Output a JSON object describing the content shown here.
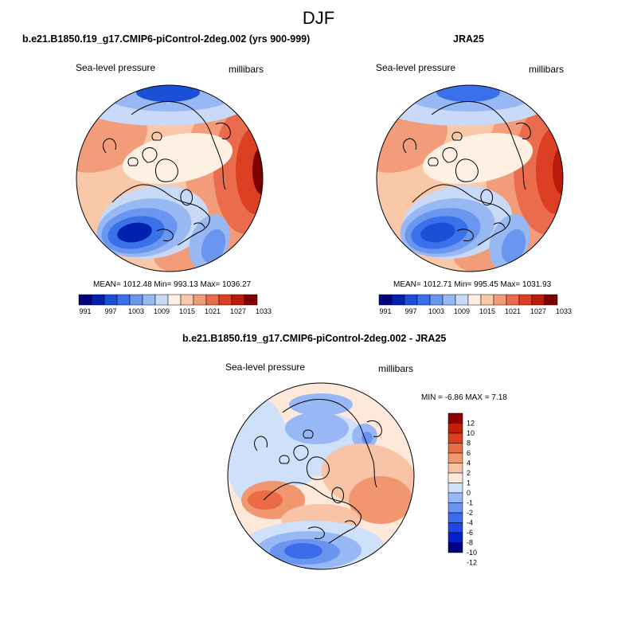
{
  "title": "DJF",
  "palette": {
    "abs_colors": [
      "#00007a",
      "#0020b0",
      "#1a4fd8",
      "#3a70ea",
      "#6996ee",
      "#98b8f4",
      "#c9daf8",
      "#fff0e4",
      "#f9c8a8",
      "#f39c7a",
      "#ea6c4c",
      "#dc3f22",
      "#bb1a08",
      "#7d0000"
    ],
    "diff_colors": [
      "#000080",
      "#0020c8",
      "#1e46e6",
      "#3c6ceb",
      "#6a94f0",
      "#98b8f5",
      "#cfe0fa",
      "#fde8da",
      "#f8c3a6",
      "#f1966e",
      "#ea6a44",
      "#dc3e1e",
      "#c0200a",
      "#8c0000"
    ],
    "coast_color": "#000000"
  },
  "panels": [
    {
      "id": "model",
      "title": "b.e21.B1850.f19_g17.CMIP6-piControl-2deg.002 (yrs 900-999)",
      "left_label": "Sea-level pressure",
      "right_label": "millibars",
      "stats": "MEAN= 1012.48  Min= 993.13  Max= 1036.27"
    },
    {
      "id": "obs",
      "title": "JRA25",
      "left_label": "Sea-level pressure",
      "right_label": "millibars",
      "stats": "MEAN= 1012.71  Min= 995.45  Max= 1031.93"
    }
  ],
  "abs_colorbar_labels": [
    "991",
    "997",
    "1003",
    "1009",
    "1015",
    "1021",
    "1027",
    "1033"
  ],
  "diff_panel": {
    "title": "b.e21.B1850.f19_g17.CMIP6-piControl-2deg.002 - JRA25",
    "left_label": "Sea-level pressure",
    "right_label": "millibars",
    "stats": "MIN =  -6.86 MAX =   7.18",
    "colorbar_labels": [
      "12",
      "10",
      "8",
      "6",
      "4",
      "2",
      "1",
      "0",
      "-1",
      "-2",
      "-4",
      "-6",
      "-8",
      "-10",
      "-12"
    ]
  },
  "chart_data": {
    "type": "heatmap",
    "projection": "north-polar-stereographic",
    "variable": "Sea-level pressure",
    "units": "millibars",
    "season": "DJF",
    "abs_levels": [
      991,
      994,
      997,
      1000,
      1003,
      1006,
      1009,
      1012,
      1015,
      1018,
      1021,
      1024,
      1027,
      1030,
      1033
    ],
    "diff_levels": [
      -12,
      -10,
      -8,
      -6,
      -4,
      -2,
      -1,
      0,
      1,
      2,
      4,
      6,
      8,
      10,
      12
    ],
    "fields": [
      {
        "name": "b.e21.B1850.f19_g17.CMIP6-piControl-2deg.002 (yrs 900-999)",
        "mean": 1012.48,
        "min": 993.13,
        "max": 1036.27
      },
      {
        "name": "JRA25",
        "mean": 1012.71,
        "min": 995.45,
        "max": 1031.93
      },
      {
        "name": "b.e21.B1850.f19_g17.CMIP6-piControl-2deg.002 - JRA25",
        "min": -6.86,
        "max": 7.18
      }
    ]
  }
}
